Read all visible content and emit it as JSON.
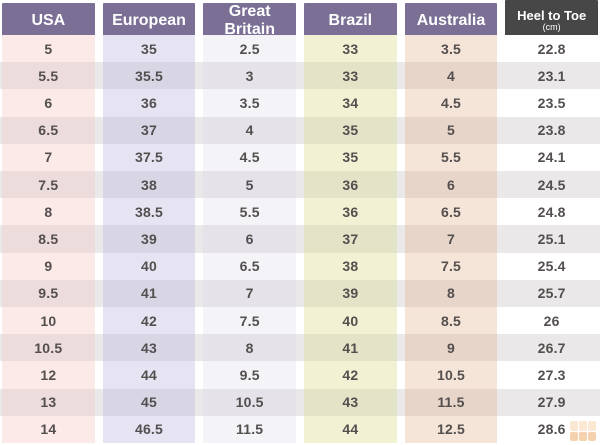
{
  "table": {
    "columns": [
      {
        "label": "USA"
      },
      {
        "label": "European"
      },
      {
        "label": "Great Britain"
      },
      {
        "label": "Brazil"
      },
      {
        "label": "Australia"
      },
      {
        "label": "Heel to Toe",
        "sublabel": "(cm)"
      }
    ],
    "rows": [
      [
        "5",
        "35",
        "2.5",
        "33",
        "3.5",
        "22.8"
      ],
      [
        "5.5",
        "35.5",
        "3",
        "33",
        "4",
        "23.1"
      ],
      [
        "6",
        "36",
        "3.5",
        "34",
        "4.5",
        "23.5"
      ],
      [
        "6.5",
        "37",
        "4",
        "35",
        "5",
        "23.8"
      ],
      [
        "7",
        "37.5",
        "4.5",
        "35",
        "5.5",
        "24.1"
      ],
      [
        "7.5",
        "38",
        "5",
        "36",
        "6",
        "24.5"
      ],
      [
        "8",
        "38.5",
        "5.5",
        "36",
        "6.5",
        "24.8"
      ],
      [
        "8.5",
        "39",
        "6",
        "37",
        "7",
        "25.1"
      ],
      [
        "9",
        "40",
        "6.5",
        "38",
        "7.5",
        "25.4"
      ],
      [
        "9.5",
        "41",
        "7",
        "39",
        "8",
        "25.7"
      ],
      [
        "10",
        "42",
        "7.5",
        "40",
        "8.5",
        "26"
      ],
      [
        "10.5",
        "43",
        "8",
        "41",
        "9",
        "26.7"
      ],
      [
        "12",
        "44",
        "9.5",
        "42",
        "10.5",
        "27.3"
      ],
      [
        "13",
        "45",
        "10.5",
        "43",
        "11.5",
        "27.9"
      ],
      [
        "14",
        "46.5",
        "11.5",
        "44",
        "12.5",
        "28.6"
      ]
    ]
  },
  "palette": {
    "header_purple": "#7b6f96",
    "header_dark": "#474747",
    "header_text": "#ffffff",
    "body_text": "#544f4f",
    "row_odd": "#ffffff",
    "row_even": "#eae8e8",
    "column_tints_odd": [
      "#fbeae8",
      "#e6e4f2",
      "#f4f3f7",
      "#f1f1d3",
      "#f5e4d8",
      "#ffffff"
    ],
    "column_tints_even": [
      "#ecdcdb",
      "#d8d6e4",
      "#e5e3e9",
      "#e3e3c7",
      "#e7d5c9",
      "#eae8e8"
    ],
    "watermark_orange": "#eda75f"
  }
}
